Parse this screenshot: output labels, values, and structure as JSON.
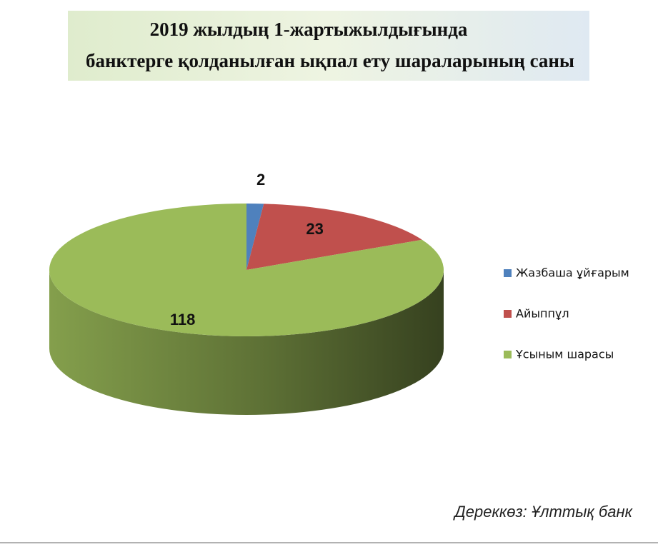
{
  "chart_data": {
    "type": "pie",
    "title": [
      "2019 жылдың 1-жартыжылдығында",
      "банктерге қолданылған ықпал ету шараларының саны"
    ],
    "categories": [
      "Жазбаша ұйғарым",
      "Айыппұл",
      "Ұсыным шарасы"
    ],
    "values": [
      2,
      23,
      118
    ],
    "colors": [
      "#4f81bd",
      "#c0504d",
      "#9bbb59"
    ],
    "legend": "right",
    "source": "Дереккөз: Ұлттық банк"
  }
}
